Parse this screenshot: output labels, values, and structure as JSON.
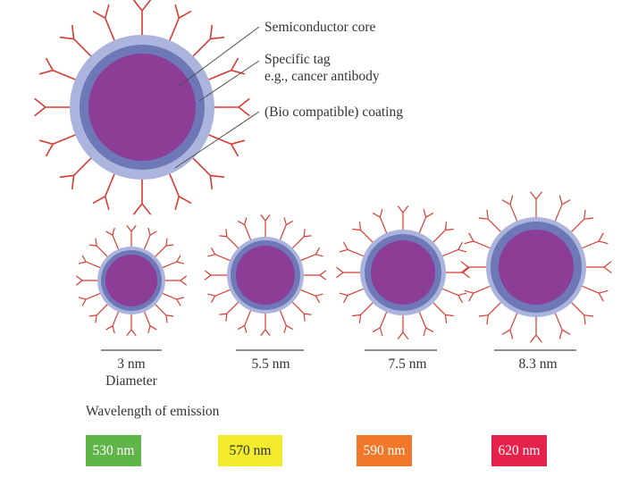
{
  "labels": {
    "core": "Semiconductor core",
    "tag": "Specific tag",
    "tag_example": "e.g., cancer antibody",
    "coating": "(Bio compatible) coating"
  },
  "colors": {
    "core": "#8c3d96",
    "inner_shell": "#6e78b6",
    "coating": "#aab4dc",
    "antibody": "#d93a33"
  },
  "sizes": [
    {
      "size": "3 nm",
      "caption": "Diameter"
    },
    {
      "size": "5.5 nm",
      "caption": ""
    },
    {
      "size": "7.5 nm",
      "caption": ""
    },
    {
      "size": "8.3 nm",
      "caption": ""
    }
  ],
  "emission": {
    "title": "Wavelength of emission",
    "swatches": [
      {
        "label": "530 nm",
        "color": "#5fb548"
      },
      {
        "label": "570 nm",
        "color": "#f1eb2b"
      },
      {
        "label": "590 nm",
        "color": "#f1772a"
      },
      {
        "label": "620 nm",
        "color": "#e5224a"
      }
    ]
  }
}
